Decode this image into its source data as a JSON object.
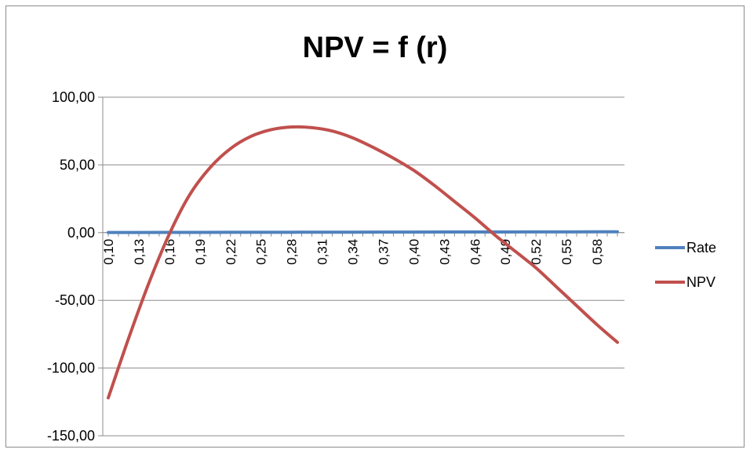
{
  "chart_data": {
    "type": "line",
    "title": "NPV = f (r)",
    "x_tick_labels": [
      "0,10",
      "0,13",
      "0,16",
      "0,19",
      "0,22",
      "0,25",
      "0,28",
      "0,31",
      "0,34",
      "0,37",
      "0,40",
      "0,43",
      "0,46",
      "0,49",
      "0,52",
      "0,55",
      "0,58"
    ],
    "y_tick_labels": [
      "100,00",
      "50,00",
      "0,00",
      "-50,00",
      "-100,00",
      "-150,00"
    ],
    "ylim": [
      -150,
      100
    ],
    "xlim": [
      0.1,
      0.6
    ],
    "grid": "horizontal",
    "legend_position": "right",
    "series": [
      {
        "name": "Rate",
        "color": "#4f81bd",
        "x": [
          0.1,
          0.13,
          0.16,
          0.19,
          0.22,
          0.25,
          0.28,
          0.31,
          0.34,
          0.37,
          0.4,
          0.43,
          0.46,
          0.49,
          0.52,
          0.55,
          0.58,
          0.6
        ],
        "y": [
          0.1,
          0.13,
          0.16,
          0.19,
          0.22,
          0.25,
          0.28,
          0.31,
          0.34,
          0.37,
          0.4,
          0.43,
          0.46,
          0.49,
          0.52,
          0.55,
          0.58,
          0.6
        ]
      },
      {
        "name": "NPV",
        "color": "#c0504d",
        "x": [
          0.1,
          0.12,
          0.14,
          0.16,
          0.18,
          0.2,
          0.22,
          0.24,
          0.26,
          0.28,
          0.3,
          0.32,
          0.34,
          0.36,
          0.38,
          0.4,
          0.42,
          0.44,
          0.46,
          0.48,
          0.5,
          0.52,
          0.54,
          0.56,
          0.58,
          0.6
        ],
        "y": [
          -122,
          -78,
          -37,
          -1,
          28,
          48,
          62,
          71,
          76,
          78,
          77.5,
          75,
          70,
          63,
          55,
          46,
          35,
          23,
          11,
          -2,
          -14,
          -26,
          -40,
          -54,
          -68,
          -81
        ]
      }
    ]
  }
}
